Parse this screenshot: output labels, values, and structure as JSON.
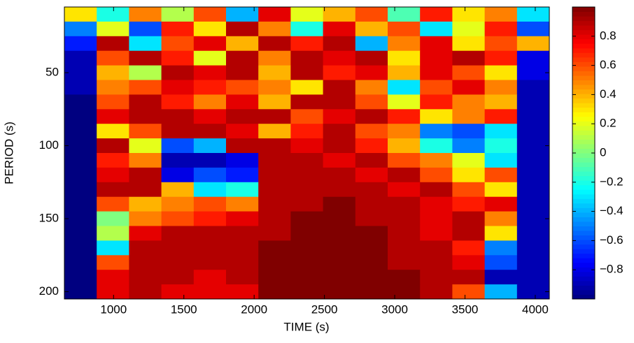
{
  "chart_data": {
    "type": "heatmap",
    "xlabel": "TIME (s)",
    "ylabel": "PERIOD (s)",
    "x_edges": [
      650,
      880,
      1110,
      1340,
      1570,
      1800,
      2030,
      2260,
      2490,
      2720,
      2950,
      3180,
      3410,
      3640,
      3870,
      4100
    ],
    "y_edges": [
      5,
      15,
      25,
      35,
      45,
      55,
      65,
      75,
      85,
      95,
      105,
      115,
      125,
      135,
      145,
      155,
      165,
      175,
      185,
      195,
      205
    ],
    "z": [
      [
        0.3,
        -0.2,
        0.5,
        0.1,
        0.6,
        -0.4,
        0.8,
        0.2,
        0.4,
        0.6,
        -0.1,
        0.7,
        0.3,
        0.5,
        -0.3
      ],
      [
        -0.5,
        0.2,
        -0.6,
        0.7,
        0.3,
        0.9,
        0.5,
        -0.2,
        0.8,
        0.4,
        0.6,
        -0.3,
        0.2,
        0.7,
        -0.6
      ],
      [
        -0.7,
        0.9,
        -0.3,
        0.6,
        0.8,
        0.4,
        0.9,
        0.7,
        0.9,
        -0.4,
        0.5,
        0.8,
        0.3,
        0.6,
        0.4
      ],
      [
        -0.9,
        0.6,
        0.9,
        0.7,
        0.2,
        0.9,
        0.5,
        0.9,
        0.8,
        0.9,
        0.3,
        0.8,
        0.9,
        0.7,
        -0.8
      ],
      [
        -0.9,
        0.4,
        0.1,
        0.9,
        0.8,
        0.9,
        0.4,
        0.9,
        0.7,
        0.8,
        0.4,
        0.8,
        0.6,
        0.3,
        -0.8
      ],
      [
        -0.9,
        0.5,
        0.6,
        0.8,
        0.7,
        0.6,
        0.5,
        0.3,
        0.9,
        0.5,
        -0.3,
        0.6,
        0.8,
        0.5,
        -0.9
      ],
      [
        -1,
        0.6,
        0.9,
        0.7,
        0.5,
        0.8,
        0.4,
        0.9,
        0.9,
        0.6,
        0.2,
        0.7,
        0.5,
        0.4,
        -0.9
      ],
      [
        -1,
        0.8,
        0.9,
        0.9,
        0.8,
        0.9,
        0.9,
        0.6,
        0.8,
        0.9,
        0.7,
        0.3,
        0.5,
        0.7,
        -0.9
      ],
      [
        -1,
        0.3,
        0.6,
        0.9,
        0.9,
        0.8,
        0.4,
        0.7,
        0.9,
        0.6,
        0.5,
        -0.5,
        -0.6,
        -0.3,
        -0.9
      ],
      [
        -1,
        0.9,
        0.2,
        -0.6,
        -0.4,
        0.9,
        0.9,
        0.8,
        0.9,
        0.7,
        0.4,
        -0.2,
        -0.5,
        -0.2,
        -0.9
      ],
      [
        -1,
        0.7,
        0.5,
        -0.9,
        -0.9,
        -0.8,
        0.9,
        0.9,
        0.8,
        0.9,
        0.6,
        0.5,
        0.2,
        -0.3,
        -0.9
      ],
      [
        -1,
        0.8,
        0.9,
        -0.8,
        -0.6,
        -0.7,
        0.9,
        0.9,
        0.9,
        0.8,
        0.9,
        0.6,
        0.3,
        0.6,
        -0.9
      ],
      [
        -1,
        0.9,
        0.9,
        0.4,
        -0.3,
        -0.2,
        0.9,
        0.9,
        0.9,
        0.9,
        0.8,
        0.9,
        0.6,
        0.3,
        -0.9
      ],
      [
        -1,
        0.6,
        0.4,
        0.5,
        0.6,
        0.5,
        0.9,
        0.9,
        1,
        0.9,
        0.9,
        0.8,
        0.7,
        0.8,
        -0.9
      ],
      [
        -1,
        0.0,
        0.5,
        0.6,
        0.7,
        0.8,
        0.9,
        1,
        1,
        0.9,
        0.9,
        0.8,
        0.9,
        0.5,
        -0.9
      ],
      [
        -1,
        0.1,
        0.8,
        0.9,
        0.9,
        0.9,
        0.9,
        1,
        1,
        1,
        0.9,
        0.8,
        0.9,
        0.3,
        -0.9
      ],
      [
        -1,
        -0.3,
        0.9,
        0.9,
        0.9,
        0.9,
        1,
        1,
        1,
        1,
        0.9,
        0.9,
        0.7,
        -0.5,
        -0.9
      ],
      [
        -1,
        0.6,
        0.9,
        0.9,
        0.9,
        0.9,
        1,
        1,
        1,
        1,
        0.9,
        0.9,
        0.8,
        -0.6,
        -0.9
      ],
      [
        -1,
        0.8,
        0.9,
        0.9,
        0.8,
        0.9,
        1,
        1,
        1,
        1,
        1,
        0.9,
        0.9,
        -0.9,
        -0.9
      ],
      [
        -1,
        0.8,
        0.9,
        0.8,
        0.8,
        0.8,
        1,
        1,
        1,
        1,
        1,
        0.9,
        0.6,
        -0.4,
        -0.9
      ]
    ],
    "xlim": [
      650,
      4100
    ],
    "ylim": [
      5,
      205
    ],
    "y_reversed": true,
    "xticks": [
      1000,
      1500,
      2000,
      2500,
      3000,
      3500,
      4000
    ],
    "yticks": [
      50,
      100,
      150,
      200
    ],
    "colormap": "jet",
    "clim": [
      -1,
      1
    ],
    "cticks": [
      -0.8,
      -0.6,
      -0.4,
      -0.2,
      0,
      0.2,
      0.4,
      0.6,
      0.8
    ]
  }
}
